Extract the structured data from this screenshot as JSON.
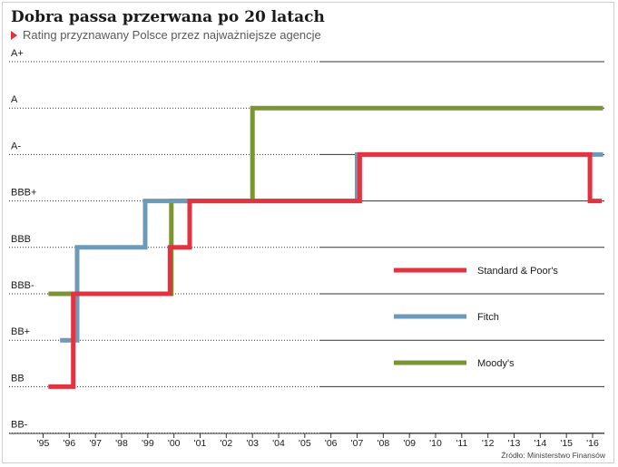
{
  "title": "Dobra passa przerwana po 20 latach",
  "subtitle": "Rating przyznawany Polsce przez najważniejsze agencje",
  "source": "Źródło: Ministerstwo Finansów",
  "colors": {
    "accent": "#e03040"
  },
  "chart_data": {
    "type": "line",
    "step": true,
    "title": "Dobra passa przerwana po 20 latach",
    "subtitle": "Rating przyznawany Polsce przez najważniejsze agencje",
    "y_categories": [
      "BB-",
      "BB",
      "BB+",
      "BBB-",
      "BBB",
      "BBB+",
      "A-",
      "A",
      "A+"
    ],
    "x_ticks": [
      "'95",
      "'96",
      "'97",
      "'98",
      "'99",
      "'00",
      "'01",
      "'02",
      "'03",
      "'04",
      "'05",
      "'06",
      "'07",
      "'08",
      "'09",
      "'10",
      "'11",
      "'12",
      "'13",
      "'14",
      "'15",
      "'16"
    ],
    "xlim": [
      1995,
      2016
    ],
    "grid": true,
    "legend_position": "right",
    "series": [
      {
        "name": "Standard & Poor's",
        "color": "#e23341",
        "points": [
          [
            1995.2,
            "BB"
          ],
          [
            1996.15,
            "BB"
          ],
          [
            1996.15,
            "BBB-"
          ],
          [
            1999.85,
            "BBB-"
          ],
          [
            1999.85,
            "BBB"
          ],
          [
            2000.6,
            "BBB"
          ],
          [
            2000.6,
            "BBB+"
          ],
          [
            2007.1,
            "BBB+"
          ],
          [
            2007.1,
            "A-"
          ],
          [
            2015.9,
            "A-"
          ],
          [
            2015.9,
            "BBB+"
          ],
          [
            2016.35,
            "BBB+"
          ]
        ]
      },
      {
        "name": "Fitch",
        "color": "#6c9ab8",
        "points": [
          [
            1995.65,
            "BB+"
          ],
          [
            1996.3,
            "BB+"
          ],
          [
            1996.3,
            "BBB"
          ],
          [
            1998.9,
            "BBB"
          ],
          [
            1998.9,
            "BBB+"
          ],
          [
            2007.0,
            "BBB+"
          ],
          [
            2007.0,
            "A-"
          ],
          [
            2016.4,
            "A-"
          ]
        ]
      },
      {
        "name": "Moody's",
        "color": "#7b9434",
        "points": [
          [
            1995.2,
            "BBB-"
          ],
          [
            1999.9,
            "BBB-"
          ],
          [
            1999.9,
            "BBB+"
          ],
          [
            2003.0,
            "BBB+"
          ],
          [
            2003.0,
            "A"
          ],
          [
            2016.4,
            "A"
          ]
        ]
      }
    ]
  }
}
